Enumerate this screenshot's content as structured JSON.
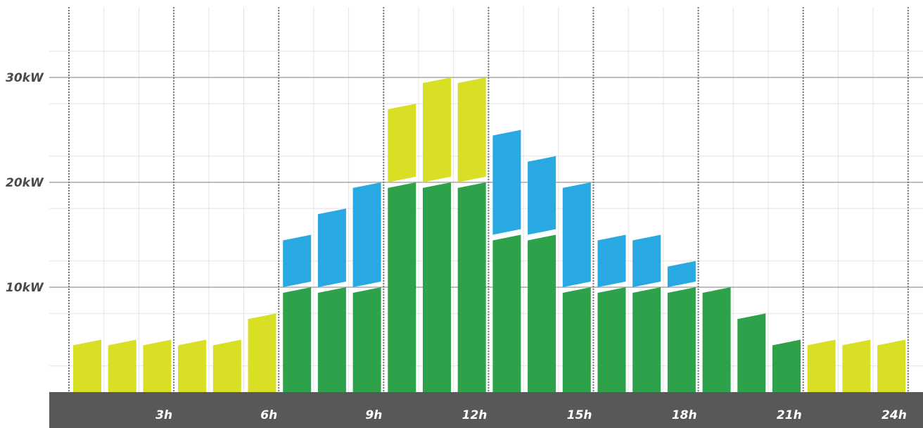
{
  "chart_data": {
    "type": "bar",
    "stacked": true,
    "categories": [
      "1",
      "2",
      "3",
      "4",
      "5",
      "6",
      "7",
      "8",
      "9",
      "10",
      "11",
      "12",
      "13",
      "14",
      "15",
      "16",
      "17",
      "18",
      "19",
      "20",
      "21",
      "22",
      "23",
      "24"
    ],
    "x_tick_labels": [
      "3h",
      "6h",
      "9h",
      "12h",
      "15h",
      "18h",
      "21h",
      "24h"
    ],
    "y_tick_labels": [
      "10kW",
      "20kW",
      "30kW"
    ],
    "ylim": [
      0,
      37
    ],
    "grid": true,
    "colors": {
      "yellow": "#d8df24",
      "green": "#2ea24a",
      "blue": "#29a9e1",
      "axis_bar": "#58585a"
    },
    "series": [
      {
        "color_key": "green",
        "values": [
          0,
          0,
          0,
          0,
          0,
          0,
          10,
          10,
          10,
          20,
          20,
          20,
          15,
          15,
          10,
          10,
          10,
          10,
          10,
          7.5,
          5,
          0,
          0,
          0
        ]
      },
      {
        "color_key": "blue",
        "values": [
          0,
          0,
          0,
          0,
          0,
          0,
          5,
          7.5,
          10,
          0,
          0,
          0,
          10,
          7.5,
          10,
          5,
          5,
          2.5,
          0,
          0,
          0,
          0,
          0,
          0
        ]
      },
      {
        "color_key": "yellow",
        "values": [
          5,
          5,
          5,
          5,
          5,
          7.5,
          0,
          0,
          0,
          7.5,
          10,
          10,
          0,
          0,
          0,
          0,
          0,
          0,
          0,
          0,
          0,
          5,
          5,
          5
        ]
      }
    ]
  }
}
